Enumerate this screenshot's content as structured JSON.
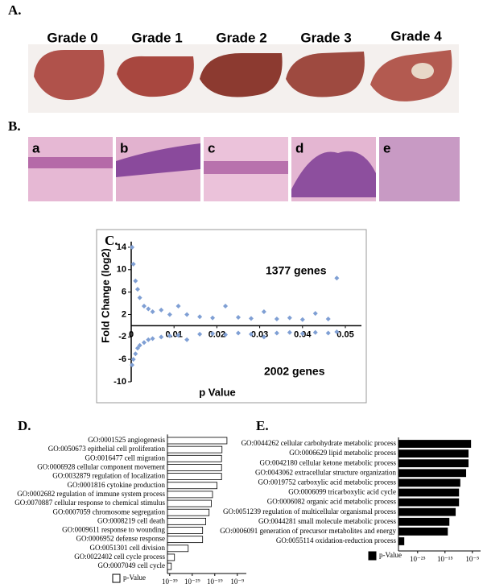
{
  "panel_a": {
    "label": "A.",
    "grades": [
      "Grade 0",
      "Grade 1",
      "Grade 2",
      "Grade 3",
      "Grade 4"
    ]
  },
  "panel_b": {
    "label": "B.",
    "images": [
      "a",
      "b",
      "c",
      "d",
      "e"
    ]
  },
  "chart_data": [
    {
      "type": "scatter",
      "label": "C.",
      "xlabel": "p Value",
      "ylabel": "Fold Change (log2)",
      "annotations": [
        "1377 genes",
        "2002 genes"
      ],
      "color": "#7f9fd4",
      "xlim": [
        0,
        0.05
      ],
      "xticks": [
        0,
        0.01,
        0.02,
        0.03,
        0.04,
        0.05
      ],
      "ylim": [
        -10,
        15
      ],
      "yticks": [
        14,
        10,
        6,
        2,
        -2,
        -6,
        -10
      ],
      "x": [
        0.0002,
        0.0005,
        0.001,
        0.0015,
        0.002,
        0.003,
        0.004,
        0.005,
        0.007,
        0.009,
        0.011,
        0.013,
        0.016,
        0.019,
        0.022,
        0.025,
        0.028,
        0.031,
        0.034,
        0.037,
        0.04,
        0.043,
        0.046,
        0.048,
        0.0002,
        0.0005,
        0.001,
        0.0015,
        0.002,
        0.003,
        0.004,
        0.005,
        0.007,
        0.009,
        0.011,
        0.013,
        0.016,
        0.019,
        0.022,
        0.025,
        0.028,
        0.031,
        0.034,
        0.037,
        0.04,
        0.043,
        0.046,
        0.048
      ],
      "y": [
        14,
        11,
        8,
        6.5,
        5,
        3.5,
        3,
        2.5,
        2.8,
        2,
        3.5,
        2,
        1.6,
        1.4,
        3.5,
        1.5,
        1.3,
        2.5,
        1.2,
        1.4,
        1.1,
        2.2,
        1.2,
        8.5,
        -7,
        -6,
        -5,
        -4,
        -3.5,
        -3,
        -2.5,
        -2.3,
        -2,
        -1.8,
        -1.7,
        -2.5,
        -1.5,
        -1.4,
        -1.6,
        -1.3,
        -1.5,
        -2,
        -1.3,
        -1.2,
        -1.4,
        -1.2,
        -1.3,
        -1.1
      ]
    },
    {
      "type": "barh",
      "label": "D.",
      "legend": "p-Value",
      "color": "#ffffff",
      "log": true,
      "xlim": [
        1e-40,
        1e-05
      ],
      "xticks": [
        {
          "value": 1e-39,
          "label": "10⁻³⁹"
        },
        {
          "value": 1e-29,
          "label": "10⁻²⁹"
        },
        {
          "value": 1e-19,
          "label": "10⁻¹⁹"
        },
        {
          "value": 1e-09,
          "label": "10⁻⁹"
        }
      ],
      "categories": [
        "GO:0001525 angiogenesis",
        "GO:0050673 epithelial cell proliferation",
        "GO:0016477 cell migration",
        "GO:0006928 cellular component movement",
        "GO:0032879 regulation of localization",
        "GO:0001816 cytokine production",
        "GO:0002682 regulation of immune system process",
        "GO:0070887 cellular response to chemical stimulus",
        "GO:0007059 chromosome segregation",
        "GO:0008219 cell death",
        "GO:0009611 response to wounding",
        "GO:0006952 defense response",
        "GO:0051301 cell division",
        "GO:0022402 cell cycle process",
        "GO:0007049 cell cycle"
      ],
      "values": [
        2.5e-14,
        1.6e-16,
        1e-16,
        1e-16,
        1e-16,
        1e-18,
        1e-20,
        3e-21,
        3e-22,
        1e-23,
        4e-25,
        4e-25,
        1.6e-31,
        1.3e-37,
        5e-39
      ]
    },
    {
      "type": "barh",
      "label": "E.",
      "legend": "p-Value",
      "color": "#000000",
      "log": true,
      "xlim": [
        1e-32,
        0.01
      ],
      "xticks": [
        {
          "value": 1e-25,
          "label": "10⁻²⁵"
        },
        {
          "value": 1e-15,
          "label": "10⁻¹⁵"
        },
        {
          "value": 1e-05,
          "label": "10⁻⁵"
        }
      ],
      "categories": [
        "GO:0044262 cellular carbohydrate metabolic process",
        "GO:0006629 lipid metabolic process",
        "GO:0042180 cellular ketone metabolic process",
        "GO:0043062 extracellular structure organization",
        "GO:0019752 carboxylic acid metabolic process",
        "GO:0006099 tricarboxylic acid cycle",
        "GO:0006082 organic acid metabolic process",
        "GO:0051239 regulation of multicellular organismal process",
        "GO:0044281 small molecule metabolic process",
        "GO:0006091 generation of precursor metabolites and energy",
        "GO:0055114 oxidation-reduction process"
      ],
      "values": [
        2.5e-06,
        3e-07,
        3e-07,
        4e-08,
        3e-10,
        1e-10,
        1e-10,
        6e-12,
        3e-14,
        8e-15,
        1e-30
      ]
    }
  ]
}
